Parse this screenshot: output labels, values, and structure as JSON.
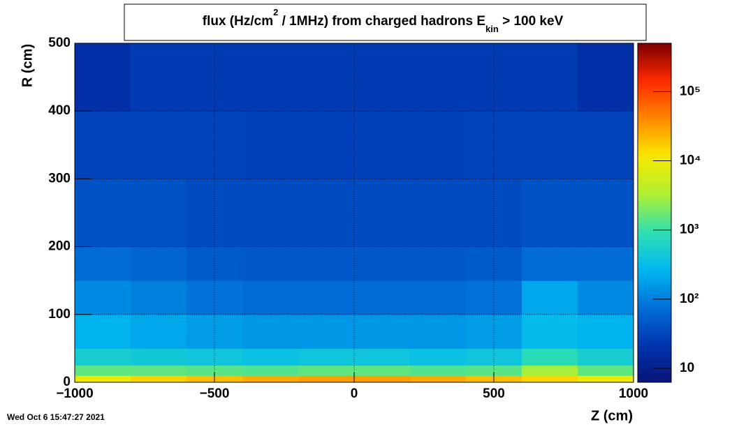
{
  "chart_data": {
    "type": "heatmap",
    "title": [
      "flux (Hz/cm",
      "2",
      " / 1MHz) from   charged hadrons  E",
      "kin",
      " > 100 keV"
    ],
    "x_label": "Z (cm)",
    "y_label": "R (cm)",
    "date_stamp": "Wed Oct  6 15:47:27 2021",
    "xbins": [
      -1000,
      -800,
      -600,
      -400,
      -200,
      0,
      200,
      400,
      600,
      800,
      1000
    ],
    "ybins": [
      0,
      10,
      25,
      50,
      100,
      150,
      200,
      300,
      400,
      500
    ],
    "values": [
      [
        10000,
        15000,
        20000,
        25000,
        30000,
        30000,
        25000,
        20000,
        15000,
        10000
      ],
      [
        1500,
        1500,
        1400,
        1300,
        1500,
        1500,
        1300,
        1400,
        3000,
        1500
      ],
      [
        500,
        450,
        400,
        350,
        400,
        400,
        350,
        400,
        800,
        500
      ],
      [
        250,
        200,
        170,
        150,
        150,
        150,
        150,
        170,
        300,
        250
      ],
      [
        120,
        100,
        80,
        70,
        70,
        70,
        70,
        80,
        200,
        120
      ],
      [
        70,
        60,
        50,
        45,
        45,
        45,
        45,
        50,
        70,
        70
      ],
      [
        40,
        40,
        35,
        35,
        35,
        35,
        35,
        35,
        40,
        40
      ],
      [
        30,
        30,
        30,
        28,
        28,
        28,
        28,
        30,
        30,
        30
      ],
      [
        18,
        25,
        25,
        25,
        25,
        25,
        25,
        25,
        25,
        18
      ]
    ],
    "xlim": [
      -1000,
      1000
    ],
    "ylim": [
      0,
      500
    ],
    "xticks": [
      {
        "value": -1000,
        "label": "−1000"
      },
      {
        "value": -500,
        "label": "−500"
      },
      0,
      500,
      1000
    ],
    "yticks": [
      0,
      100,
      200,
      300,
      400,
      500
    ],
    "zlim": [
      6.3,
      500000
    ],
    "zlog": true,
    "zticks": [
      10,
      {
        "value": 100,
        "label": "10²"
      },
      {
        "value": 1000,
        "label": "10³"
      },
      {
        "value": 10000,
        "label": "10⁴"
      },
      {
        "value": 100000,
        "label": "10⁵"
      }
    ],
    "colorscale": [
      "#0a1478",
      "#0035b0",
      "#0070d8",
      "#00b8f0",
      "#30e0b0",
      "#b0f030",
      "#f8e800",
      "#ff8800",
      "#ff2800",
      "#7a0000"
    ],
    "grid": true
  }
}
